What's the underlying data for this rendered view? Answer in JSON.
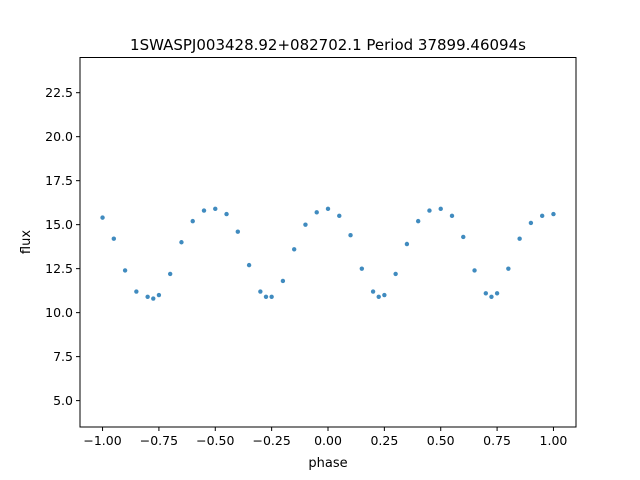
{
  "chart_data": {
    "type": "scatter",
    "title": "1SWASPJ003428.92+082702.1 Period 37899.46094s",
    "xlabel": "phase",
    "ylabel": "flux",
    "xlim": [
      -1.1,
      1.1
    ],
    "ylim": [
      3.5,
      24.5
    ],
    "xticks": [
      -1.0,
      -0.75,
      -0.5,
      -0.25,
      0.0,
      0.25,
      0.5,
      0.75,
      1.0
    ],
    "xtick_labels": [
      "−1.00",
      "−0.75",
      "−0.50",
      "−0.25",
      "0.00",
      "0.25",
      "0.50",
      "0.75",
      "1.00"
    ],
    "yticks": [
      5.0,
      7.5,
      10.0,
      12.5,
      15.0,
      17.5,
      20.0,
      22.5
    ],
    "ytick_labels": [
      "5.0",
      "7.5",
      "10.0",
      "12.5",
      "15.0",
      "17.5",
      "20.0",
      "22.5"
    ],
    "grid": false,
    "legend": "none",
    "point_color": "#1f77b4",
    "series": [
      {
        "x": [
          -1.0,
          -0.95,
          -0.9,
          -0.85,
          -0.8,
          -0.775,
          -0.75,
          -0.7,
          -0.65,
          -0.6,
          -0.55,
          -0.5,
          -0.45,
          -0.4,
          -0.35,
          -0.3,
          -0.275,
          -0.25,
          -0.2,
          -0.15,
          -0.1,
          -0.05,
          0.0,
          0.05,
          0.1,
          0.15,
          0.2,
          0.225,
          0.25,
          0.3,
          0.35,
          0.4,
          0.45,
          0.5,
          0.55,
          0.6,
          0.65,
          0.7,
          0.725,
          0.75,
          0.8,
          0.85,
          0.9,
          0.95,
          1.0
        ],
        "y": [
          15.4,
          14.2,
          12.4,
          11.2,
          10.9,
          10.8,
          11.0,
          12.2,
          14.0,
          15.2,
          15.8,
          15.9,
          15.6,
          14.6,
          12.7,
          11.2,
          10.9,
          10.9,
          11.8,
          13.6,
          15.0,
          15.7,
          15.9,
          15.5,
          14.4,
          12.5,
          11.2,
          10.9,
          11.0,
          12.2,
          13.9,
          15.2,
          15.8,
          15.9,
          15.5,
          14.3,
          12.4,
          11.1,
          10.9,
          11.1,
          12.5,
          14.2,
          15.1,
          15.5,
          15.6
        ]
      }
    ]
  }
}
